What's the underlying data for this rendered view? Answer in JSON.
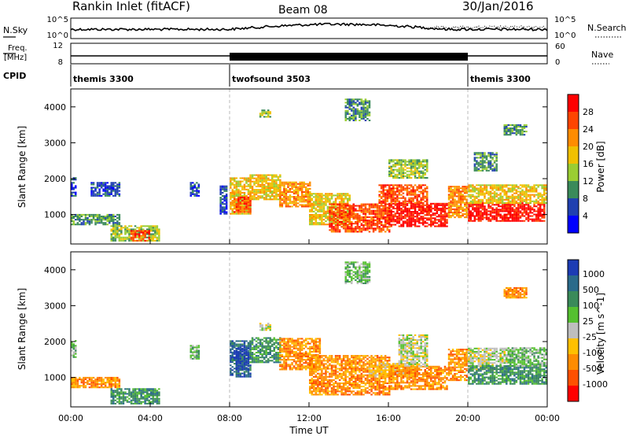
{
  "header": {
    "station": "Rankin Inlet (fitACF)",
    "beam": "Beam 08",
    "date": "30/Jan/2016"
  },
  "top_strips": {
    "nsky_label": "N.Sky",
    "nsearch_label": "N.Search",
    "nsky_ticks": [
      "10^5",
      "10^0"
    ],
    "nsearch_ticks": [
      "10^5",
      "10^0"
    ],
    "freq_label_1": "Freq.",
    "freq_label_2": "[MHz]",
    "freq_ticks": [
      "12",
      "8"
    ],
    "nave_label": "Nave",
    "nave_ticks": [
      "60",
      "0"
    ],
    "cpid_label": "CPID",
    "modes": [
      {
        "name": "themis 3300",
        "start_hour": 0,
        "end_hour": 8
      },
      {
        "name": "twofsound 3503",
        "start_hour": 8,
        "end_hour": 20
      },
      {
        "name": "themis 3300",
        "start_hour": 20,
        "end_hour": 24
      }
    ]
  },
  "power_colorbar": {
    "label": "Power [dB]",
    "ticks": [
      "4",
      "8",
      "12",
      "16",
      "20",
      "24",
      "28"
    ],
    "colors": [
      "#0000ff",
      "#2040b0",
      "#3a8a5a",
      "#9acd32",
      "#f0c000",
      "#ff8c00",
      "#ff4500",
      "#ff0000"
    ]
  },
  "velocity_colorbar": {
    "label": "Velocity [m s^-1]",
    "ticks": [
      "1000",
      "500",
      "100",
      "25",
      "-25",
      "-100",
      "-500",
      "-1000"
    ],
    "colors": [
      "#1c3cb4",
      "#2a6a8a",
      "#3a8a5a",
      "#55c030",
      "#bebebe",
      "#ffc000",
      "#ff8c00",
      "#ff5000",
      "#ff0000"
    ]
  },
  "chart_data": {
    "type": "heatmap",
    "xlabel": "Time UT",
    "ylabel": "Slant Range [km]",
    "x_ticks": [
      "00:00",
      "04:00",
      "08:00",
      "12:00",
      "16:00",
      "20:00",
      "00:00"
    ],
    "xlim_hours": [
      0,
      24
    ],
    "y_ticks": [
      1000,
      2000,
      3000,
      4000
    ],
    "ylim_km": [
      180,
      4500
    ],
    "grid": false,
    "panels": [
      {
        "name": "Power",
        "regions": [
          {
            "t0": 0.0,
            "t1": 2.5,
            "r0": 700,
            "r1": 1000,
            "level": 2
          },
          {
            "t0": 0.0,
            "t1": 0.3,
            "r0": 1500,
            "r1": 2000,
            "level": 1
          },
          {
            "t0": 1.0,
            "t1": 2.5,
            "r0": 1500,
            "r1": 1900,
            "level": 1
          },
          {
            "t0": 2.0,
            "t1": 4.5,
            "r0": 250,
            "r1": 700,
            "level": 3
          },
          {
            "t0": 3.0,
            "t1": 4.0,
            "r0": 250,
            "r1": 550,
            "level": 6
          },
          {
            "t0": 6.0,
            "t1": 6.4,
            "r0": 1500,
            "r1": 1900,
            "level": 1
          },
          {
            "t0": 7.5,
            "t1": 7.8,
            "r0": 1000,
            "r1": 1800,
            "level": 1
          },
          {
            "t0": 8.0,
            "t1": 9.0,
            "r0": 1000,
            "r1": 2000,
            "level": 4
          },
          {
            "t0": 8.2,
            "t1": 9.0,
            "r0": 1050,
            "r1": 1500,
            "level": 6
          },
          {
            "t0": 9.0,
            "t1": 10.5,
            "r0": 1400,
            "r1": 2100,
            "level": 4
          },
          {
            "t0": 10.5,
            "t1": 12.0,
            "r0": 1200,
            "r1": 1900,
            "level": 5
          },
          {
            "t0": 9.5,
            "t1": 10.0,
            "r0": 3700,
            "r1": 3900,
            "level": 3
          },
          {
            "t0": 12.0,
            "t1": 14.0,
            "r0": 700,
            "r1": 1600,
            "level": 4
          },
          {
            "t0": 13.0,
            "t1": 16.0,
            "r0": 500,
            "r1": 1300,
            "level": 6
          },
          {
            "t0": 13.8,
            "t1": 15.0,
            "r0": 3600,
            "r1": 4200,
            "level": 2
          },
          {
            "t0": 16.0,
            "t1": 19.0,
            "r0": 650,
            "r1": 1300,
            "level": 7
          },
          {
            "t0": 15.5,
            "t1": 18.0,
            "r0": 1300,
            "r1": 1800,
            "level": 6
          },
          {
            "t0": 16.0,
            "t1": 18.0,
            "r0": 2000,
            "r1": 2500,
            "level": 3
          },
          {
            "t0": 19.0,
            "t1": 20.0,
            "r0": 900,
            "r1": 1800,
            "level": 5
          },
          {
            "t0": 20.0,
            "t1": 23.9,
            "r0": 800,
            "r1": 1300,
            "level": 7
          },
          {
            "t0": 20.0,
            "t1": 24.0,
            "r0": 1300,
            "r1": 1800,
            "level": 4
          },
          {
            "t0": 21.8,
            "t1": 23.0,
            "r0": 3200,
            "r1": 3500,
            "level": 2
          },
          {
            "t0": 20.3,
            "t1": 21.5,
            "r0": 2200,
            "r1": 2700,
            "level": 2
          }
        ]
      },
      {
        "name": "Velocity",
        "regions": [
          {
            "t0": 0.0,
            "t1": 2.5,
            "r0": 700,
            "r1": 1000,
            "level": 6
          },
          {
            "t0": 0.0,
            "t1": 0.3,
            "r0": 1500,
            "r1": 2000,
            "level": 3
          },
          {
            "t0": 2.0,
            "t1": 4.5,
            "r0": 250,
            "r1": 700,
            "level": 2
          },
          {
            "t0": 6.0,
            "t1": 6.4,
            "r0": 1500,
            "r1": 1900,
            "level": 3
          },
          {
            "t0": 8.0,
            "t1": 9.0,
            "r0": 1000,
            "r1": 2000,
            "level": 1
          },
          {
            "t0": 8.3,
            "t1": 8.9,
            "r0": 1200,
            "r1": 1800,
            "level": 0
          },
          {
            "t0": 9.0,
            "t1": 10.5,
            "r0": 1400,
            "r1": 2100,
            "level": 2
          },
          {
            "t0": 10.5,
            "t1": 12.5,
            "r0": 1200,
            "r1": 2100,
            "level": 6
          },
          {
            "t0": 12.0,
            "t1": 16.0,
            "r0": 500,
            "r1": 1600,
            "level": 6
          },
          {
            "t0": 13.8,
            "t1": 15.0,
            "r0": 3600,
            "r1": 4200,
            "level": 3
          },
          {
            "t0": 15.0,
            "t1": 17.5,
            "r0": 1000,
            "r1": 1400,
            "level": 5
          },
          {
            "t0": 16.0,
            "t1": 19.0,
            "r0": 650,
            "r1": 1300,
            "level": 6
          },
          {
            "t0": 16.5,
            "t1": 18.0,
            "r0": 1300,
            "r1": 2200,
            "level": 4
          },
          {
            "t0": 9.5,
            "t1": 10.0,
            "r0": 2300,
            "r1": 2500,
            "level": 4
          },
          {
            "t0": 19.0,
            "t1": 20.0,
            "r0": 900,
            "r1": 1800,
            "level": 6
          },
          {
            "t0": 20.0,
            "t1": 22.0,
            "r0": 1200,
            "r1": 1800,
            "level": 4
          },
          {
            "t0": 20.0,
            "t1": 24.0,
            "r0": 800,
            "r1": 1300,
            "level": 2
          },
          {
            "t0": 22.0,
            "t1": 24.0,
            "r0": 1300,
            "r1": 1800,
            "level": 3
          },
          {
            "t0": 21.8,
            "t1": 23.0,
            "r0": 3200,
            "r1": 3500,
            "level": 6
          }
        ]
      }
    ]
  }
}
